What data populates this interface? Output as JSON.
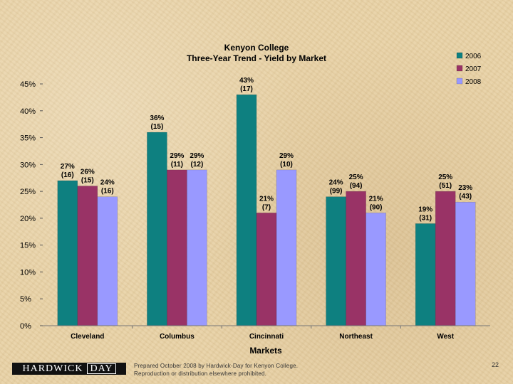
{
  "chart_data": {
    "type": "bar",
    "title": "Kenyon College",
    "subtitle": "Three-Year Trend - Yield by Market",
    "xlabel": "Markets",
    "ylabel": "",
    "ylim": [
      0,
      45
    ],
    "yticks": [
      "0%",
      "5%",
      "10%",
      "15%",
      "20%",
      "25%",
      "30%",
      "35%",
      "40%",
      "45%"
    ],
    "ytick_values": [
      0,
      5,
      10,
      15,
      20,
      25,
      30,
      35,
      40,
      45
    ],
    "categories": [
      "Cleveland",
      "Columbus",
      "Cincinnati",
      "Northeast",
      "West"
    ],
    "series": [
      {
        "name": "2006",
        "color": "#0e8080",
        "values": [
          27,
          36,
          43,
          24,
          19
        ],
        "labels": [
          "27%",
          "36%",
          "43%",
          "24%",
          "19%"
        ],
        "counts": [
          "(16)",
          "(15)",
          "(17)",
          "(99)",
          "(31)"
        ]
      },
      {
        "name": "2007",
        "color": "#993366",
        "values": [
          26,
          29,
          21,
          25,
          25
        ],
        "labels": [
          "26%",
          "29%",
          "21%",
          "25%",
          "25%"
        ],
        "counts": [
          "(15)",
          "(11)",
          "(7)",
          "(94)",
          "(51)"
        ]
      },
      {
        "name": "2008",
        "color": "#9999ff",
        "values": [
          24,
          29,
          29,
          21,
          23
        ],
        "labels": [
          "24%",
          "29%",
          "29%",
          "21%",
          "23%"
        ],
        "counts": [
          "(16)",
          "(12)",
          "(10)",
          "(90)",
          "(43)"
        ]
      }
    ],
    "legend_position": "top-right",
    "grid": false
  },
  "footer": {
    "logo_word1": "HARDWICK",
    "logo_word2": "DAY",
    "note_line1": "Prepared October 2008 by Hardwick-Day for Kenyon College.",
    "note_line2": "Reproduction or distribution elsewhere prohibited.",
    "page_number": "22"
  }
}
